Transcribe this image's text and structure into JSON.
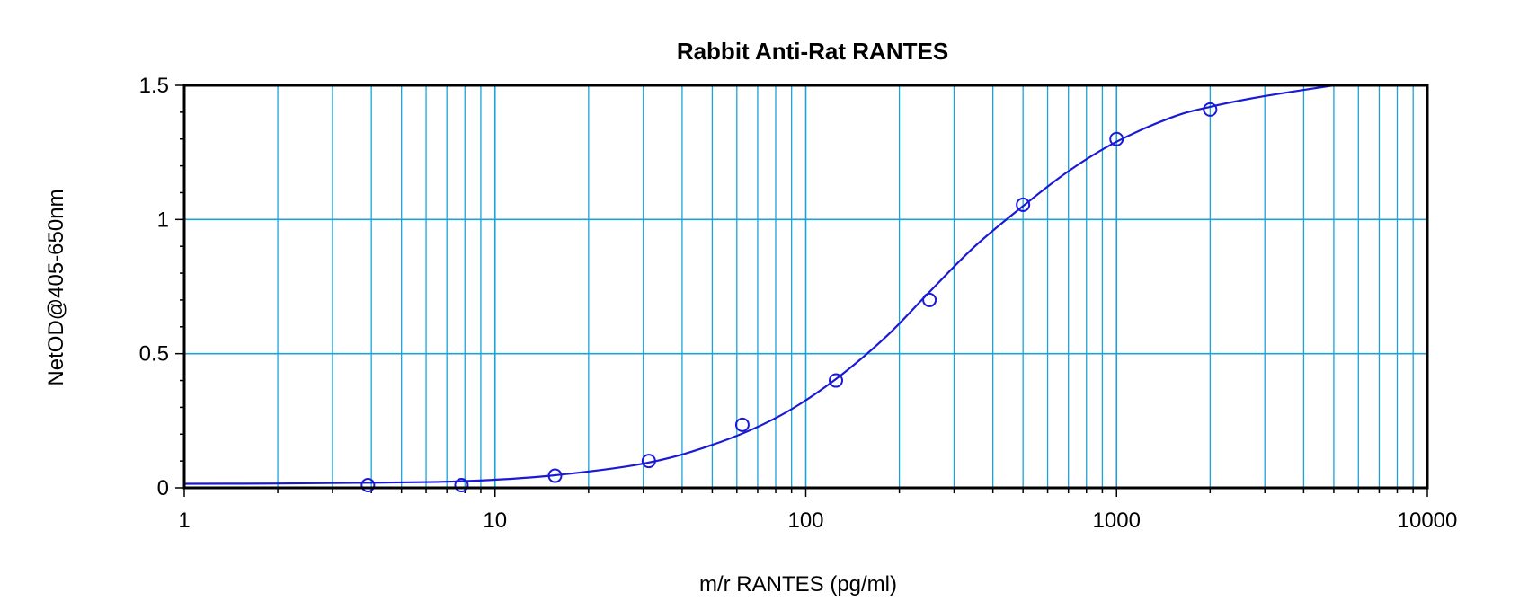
{
  "chart_data": {
    "type": "scatter",
    "title": "Rabbit Anti-Rat RANTES",
    "xlabel": "m/r RANTES (pg/ml)",
    "ylabel": "NetOD@405-650nm",
    "x_scale": "log",
    "xlim": [
      1,
      10000
    ],
    "ylim": [
      0,
      1.5
    ],
    "x_ticks": [
      1,
      10,
      100,
      1000,
      10000
    ],
    "x_tick_labels": [
      "1",
      "10",
      "100",
      "1000",
      "10000"
    ],
    "y_ticks": [
      0,
      0.5,
      1,
      1.5
    ],
    "y_tick_labels": [
      "0",
      "0.5",
      "1",
      "1.5"
    ],
    "grid": true,
    "colors": {
      "grid": "#1aa3d9",
      "series": "#1a1ad6",
      "frame": "#000000"
    },
    "series": [
      {
        "kind": "points",
        "x": [
          3.9,
          7.8,
          15.6,
          31.25,
          62.5,
          125,
          250,
          500,
          1000,
          2000
        ],
        "y": [
          0.01,
          0.01,
          0.045,
          0.1,
          0.235,
          0.4,
          0.7,
          1.055,
          1.3,
          1.41
        ]
      },
      {
        "kind": "fitted-curve",
        "x": [
          1,
          2,
          4,
          8,
          15,
          30,
          50,
          80,
          120,
          180,
          250,
          350,
          500,
          700,
          1000,
          1500,
          2000,
          3000,
          5000
        ],
        "y": [
          0.015,
          0.016,
          0.019,
          0.025,
          0.045,
          0.09,
          0.16,
          0.26,
          0.39,
          0.56,
          0.73,
          0.9,
          1.05,
          1.18,
          1.29,
          1.38,
          1.42,
          1.46,
          1.5
        ]
      }
    ]
  }
}
